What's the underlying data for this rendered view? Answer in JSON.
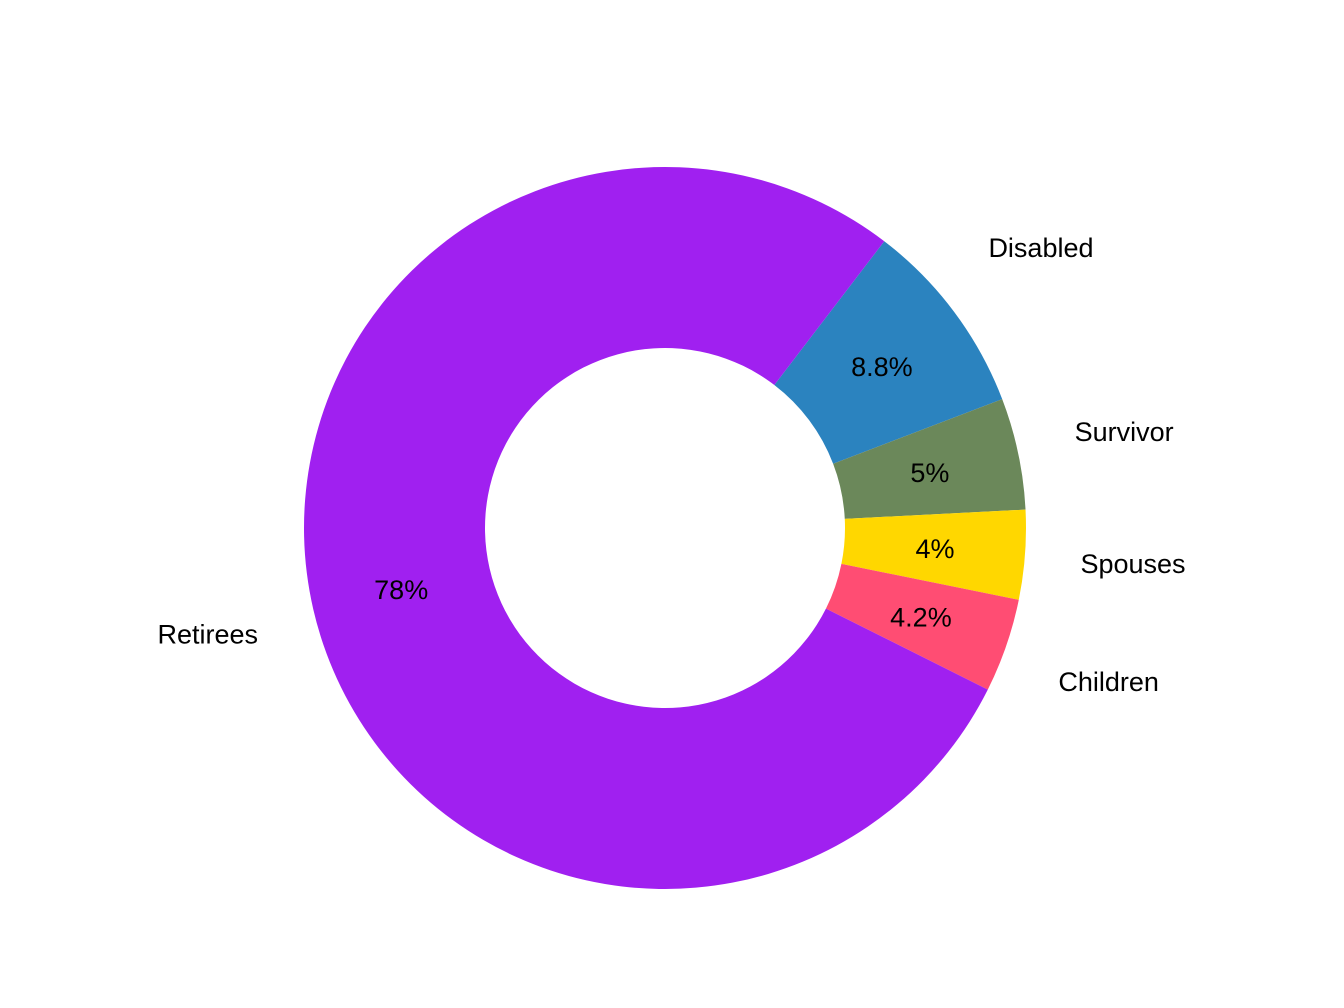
{
  "chart_data": {
    "type": "pie",
    "variant": "donut",
    "title": "",
    "start_category": "Disabled",
    "direction": "clockwise",
    "categories": [
      "Disabled",
      "Survivor",
      "Spouses",
      "Children",
      "Retirees"
    ],
    "values": [
      8.8,
      5,
      4,
      4.2,
      78
    ],
    "value_labels": [
      "8.8%",
      "5%",
      "4%",
      "4.2%",
      "78%"
    ],
    "colors": [
      "#2B83BF",
      "#6B885A",
      "#FFD700",
      "#FF4D73",
      "#A020F0"
    ],
    "legend": "none"
  }
}
